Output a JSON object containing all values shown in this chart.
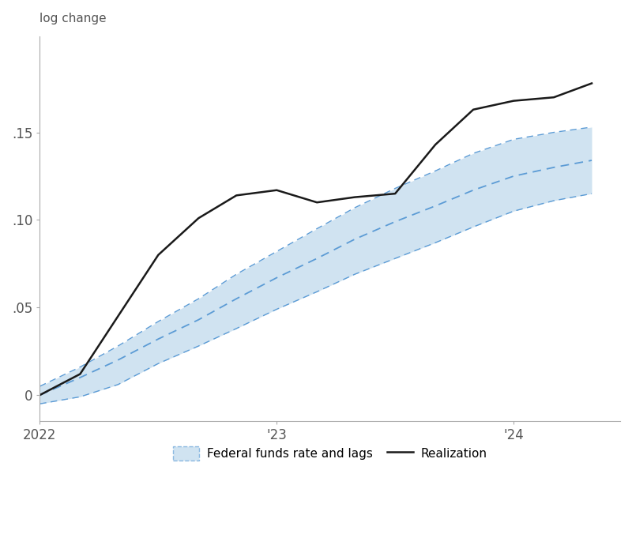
{
  "title_ylabel": "log change",
  "background_color": "#ffffff",
  "realization_x": [
    2022.0,
    2022.17,
    2022.33,
    2022.5,
    2022.67,
    2022.83,
    2023.0,
    2023.17,
    2023.33,
    2023.5,
    2023.67,
    2023.83,
    2024.0,
    2024.17,
    2024.33
  ],
  "realization_y": [
    0.0,
    0.012,
    0.045,
    0.08,
    0.101,
    0.114,
    0.117,
    0.11,
    0.113,
    0.115,
    0.143,
    0.163,
    0.168,
    0.17,
    0.178
  ],
  "pred_x": [
    2022.0,
    2022.17,
    2022.33,
    2022.5,
    2022.67,
    2022.83,
    2023.0,
    2023.17,
    2023.33,
    2023.5,
    2023.67,
    2023.83,
    2024.0,
    2024.17,
    2024.33
  ],
  "pred_y": [
    0.0,
    0.01,
    0.02,
    0.032,
    0.043,
    0.055,
    0.067,
    0.078,
    0.089,
    0.099,
    0.108,
    0.117,
    0.125,
    0.13,
    0.134
  ],
  "upper_y": [
    0.005,
    0.016,
    0.028,
    0.042,
    0.055,
    0.069,
    0.082,
    0.095,
    0.107,
    0.118,
    0.128,
    0.138,
    0.146,
    0.15,
    0.153
  ],
  "lower_y": [
    -0.005,
    -0.001,
    0.006,
    0.018,
    0.028,
    0.038,
    0.049,
    0.059,
    0.069,
    0.078,
    0.087,
    0.096,
    0.105,
    0.111,
    0.115
  ],
  "xlim": [
    2022.0,
    2024.45
  ],
  "ylim": [
    -0.015,
    0.205
  ],
  "yticks": [
    0.0,
    0.05,
    0.1,
    0.15
  ],
  "ytick_labels": [
    "0",
    ".05",
    ".10",
    ".15"
  ],
  "xticks": [
    2022.0,
    2023.0,
    2024.0
  ],
  "xtick_labels": [
    "2022",
    "'23",
    "'24"
  ],
  "fill_color": "#b8d4ea",
  "fill_alpha": 0.65,
  "band_edge_color": "#5b9bd5",
  "pred_line_color": "#5b9bd5",
  "real_line_color": "#1a1a1a",
  "legend_label_pred": "Federal funds rate and lags",
  "legend_label_real": "Realization"
}
